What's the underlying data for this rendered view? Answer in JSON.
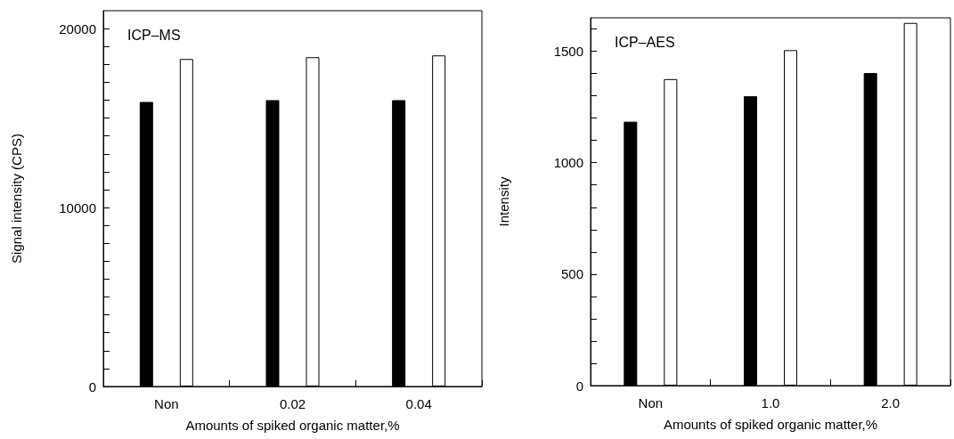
{
  "chart_data": [
    {
      "type": "bar",
      "title": "ICP–MS",
      "xlabel": "Amounts of spiked organic matter,%",
      "ylabel": "Signal intensity (CPS)",
      "categories": [
        "Non",
        "0.02",
        "0.04"
      ],
      "series": [
        {
          "color": "#000000",
          "values": [
            15900,
            16000,
            16000
          ]
        },
        {
          "color": "#ffffff",
          "values": [
            18300,
            18400,
            18500
          ]
        }
      ],
      "ylim": [
        0,
        21000
      ],
      "yticks": [
        0,
        {
          "value": 1000,
          "label": null
        },
        {
          "value": 2000,
          "label": null
        },
        {
          "value": 3000,
          "label": null
        },
        {
          "value": 4000,
          "label": null
        },
        {
          "value": 5000,
          "label": null
        },
        {
          "value": 6000,
          "label": null
        },
        {
          "value": 7000,
          "label": null
        },
        {
          "value": 8000,
          "label": null
        },
        {
          "value": 9000,
          "label": null
        },
        10000,
        {
          "value": 11000,
          "label": null
        },
        {
          "value": 12000,
          "label": null
        },
        {
          "value": 13000,
          "label": null
        },
        {
          "value": 14000,
          "label": null
        },
        {
          "value": 15000,
          "label": null
        },
        {
          "value": 16000,
          "label": null
        },
        {
          "value": 17000,
          "label": null
        },
        {
          "value": 18000,
          "label": null
        },
        {
          "value": 19000,
          "label": null
        },
        20000
      ],
      "grid": false
    },
    {
      "type": "bar",
      "title": "ICP–AES",
      "xlabel": "Amounts of spiked organic matter,%",
      "ylabel": "Intensity",
      "categories": [
        "Non",
        "1.0",
        "2.0"
      ],
      "series": [
        {
          "color": "#000000",
          "values": [
            1184,
            1298,
            1402
          ]
        },
        {
          "color": "#ffffff",
          "values": [
            1375,
            1505,
            1627
          ]
        }
      ],
      "ylim": [
        0,
        1650
      ],
      "yticks": [
        0,
        {
          "value": 100,
          "label": null
        },
        {
          "value": 200,
          "label": null
        },
        {
          "value": 300,
          "label": null
        },
        {
          "value": 400,
          "label": null
        },
        500,
        {
          "value": 600,
          "label": null
        },
        {
          "value": 700,
          "label": null
        },
        {
          "value": 800,
          "label": null
        },
        {
          "value": 900,
          "label": null
        },
        1000,
        {
          "value": 1100,
          "label": null
        },
        {
          "value": 1200,
          "label": null
        },
        {
          "value": 1300,
          "label": null
        },
        {
          "value": 1400,
          "label": null
        },
        1500,
        {
          "value": 1600,
          "label": null
        }
      ],
      "grid": false
    }
  ]
}
